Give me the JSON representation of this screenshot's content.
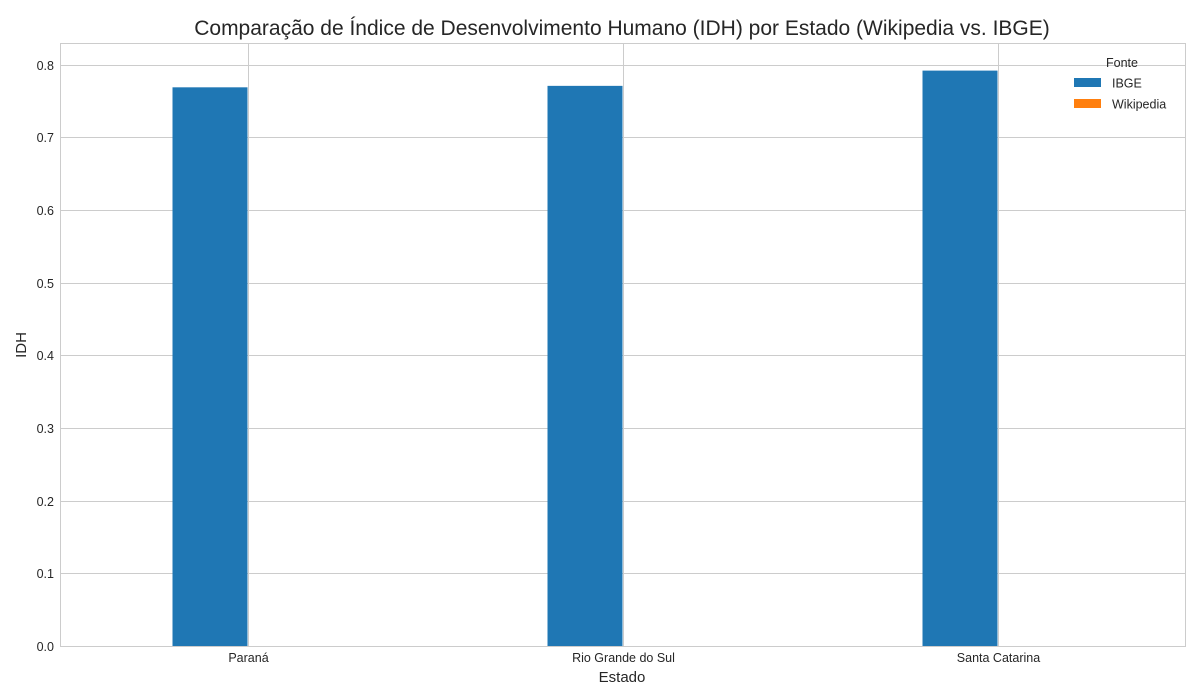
{
  "chart_data": {
    "type": "bar",
    "title": "Comparação de Índice de Desenvolvimento Humano (IDH) por Estado (Wikipedia vs. IBGE)",
    "xlabel": "Estado",
    "ylabel": "IDH",
    "categories": [
      "Paraná",
      "Rio Grande do Sul",
      "Santa Catarina"
    ],
    "series": [
      {
        "name": "IBGE",
        "values": [
          0.769,
          0.771,
          0.792
        ],
        "color": "#1f77b4"
      },
      {
        "name": "Wikipedia",
        "values": [
          0,
          0,
          0
        ],
        "color": "#ff7f0e"
      }
    ],
    "ylim": [
      0,
      0.83
    ],
    "yticks": [
      0.0,
      0.1,
      0.2,
      0.3,
      0.4,
      0.5,
      0.6,
      0.7,
      0.8
    ],
    "ytick_labels": [
      "0.0",
      "0.1",
      "0.2",
      "0.3",
      "0.4",
      "0.5",
      "0.6",
      "0.7",
      "0.8"
    ],
    "grid": true,
    "legend": {
      "title": "Fonte",
      "placement": "top-right"
    }
  }
}
